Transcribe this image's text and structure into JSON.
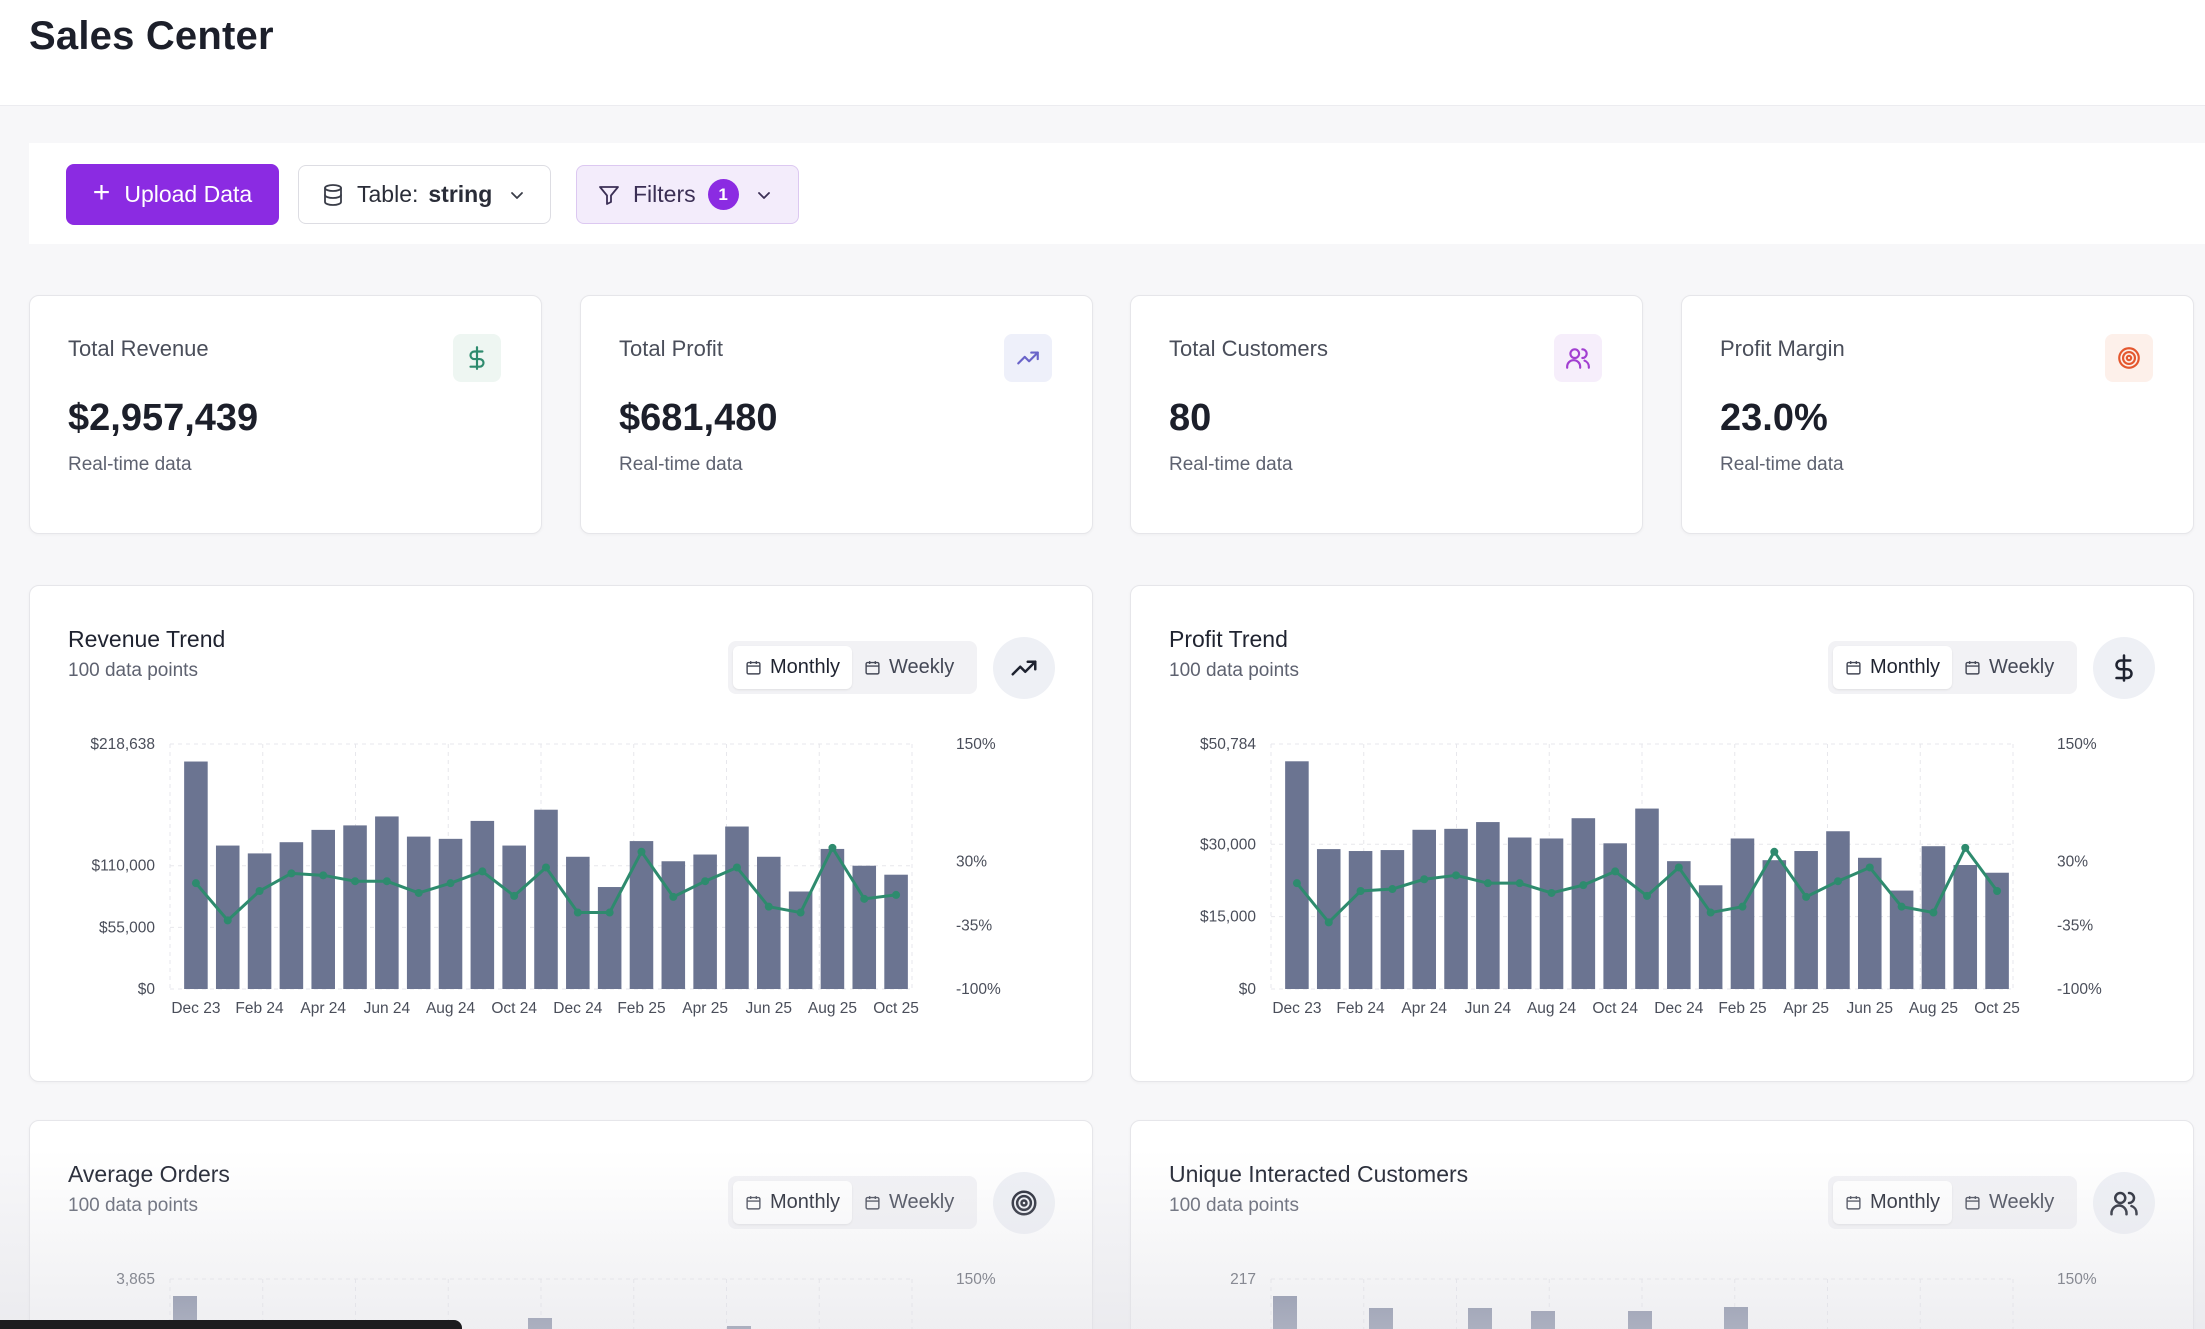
{
  "header": {
    "title": "Sales Center"
  },
  "toolbar": {
    "upload_label": "Upload Data",
    "table_label": "Table:",
    "table_value": "string",
    "filters_label": "Filters",
    "filters_count": "1"
  },
  "kpis": [
    {
      "title": "Total Revenue",
      "value": "$2,957,439",
      "sub": "Real-time data",
      "icon": "dollar-icon",
      "icon_color": "#2e8b6e",
      "icon_bg": "#eef6f2"
    },
    {
      "title": "Total Profit",
      "value": "$681,480",
      "sub": "Real-time data",
      "icon": "trending-up-icon",
      "icon_color": "#6a64c9",
      "icon_bg": "#eef0fa"
    },
    {
      "title": "Total Customers",
      "value": "80",
      "sub": "Real-time data",
      "icon": "users-icon",
      "icon_color": "#a23fd1",
      "icon_bg": "#f6eefb"
    },
    {
      "title": "Profit Margin",
      "value": "23.0%",
      "sub": "Real-time data",
      "icon": "target-icon",
      "icon_color": "#e4572e",
      "icon_bg": "#fdf0ea"
    }
  ],
  "segment": {
    "monthly": "Monthly",
    "weekly": "Weekly"
  },
  "charts": [
    {
      "title": "Revenue Trend",
      "subtitle": "100 data points",
      "icon": "trending-up-icon"
    },
    {
      "title": "Profit Trend",
      "subtitle": "100 data points",
      "icon": "dollar-icon"
    },
    {
      "title": "Average Orders",
      "subtitle": "100 data points",
      "icon": "target-icon"
    },
    {
      "title": "Unique Interacted Customers",
      "subtitle": "100 data points",
      "icon": "users-icon"
    }
  ],
  "colors": {
    "accent": "#8b2be2",
    "bar": "#6b7491",
    "line": "#2e8b6e"
  },
  "chart_data": [
    {
      "type": "bar",
      "title": "Revenue Trend",
      "x_ticks": [
        "Dec 23",
        "Feb 24",
        "Apr 24",
        "Jun 24",
        "Aug 24",
        "Oct 24",
        "Dec 24",
        "Feb 25",
        "Apr 25",
        "Jun 25",
        "Aug 25",
        "Oct 25"
      ],
      "y_ticks": [
        "$0",
        "$55,000",
        "$110,000",
        "$218,638"
      ],
      "y2_ticks": [
        "-100%",
        "-35%",
        "30%",
        "150%"
      ],
      "ylim": [
        0,
        218638
      ],
      "y2lim": [
        -100,
        150
      ],
      "series": [
        {
          "type": "bar",
          "values": [
            203000,
            128000,
            121000,
            131000,
            142000,
            146000,
            154000,
            136000,
            134000,
            150000,
            128000,
            160000,
            118000,
            91000,
            132000,
            114000,
            120000,
            145000,
            118000,
            87000,
            125000,
            110000,
            102000
          ]
        },
        {
          "type": "line",
          "values": [
            8,
            -30,
            0,
            18,
            16,
            10,
            10,
            -2,
            8,
            20,
            -5,
            24,
            -22,
            -22,
            40,
            -6,
            10,
            24,
            -16,
            -22,
            44,
            -8,
            -4
          ]
        }
      ]
    },
    {
      "type": "bar",
      "title": "Profit Trend",
      "x_ticks": [
        "Dec 23",
        "Feb 24",
        "Apr 24",
        "Jun 24",
        "Aug 24",
        "Oct 24",
        "Dec 24",
        "Feb 25",
        "Apr 25",
        "Jun 25",
        "Aug 25",
        "Oct 25"
      ],
      "y_ticks": [
        "$0",
        "$15,000",
        "$30,000",
        "$50,784"
      ],
      "y2_ticks": [
        "-100%",
        "-35%",
        "30%",
        "150%"
      ],
      "ylim": [
        0,
        50784
      ],
      "y2lim": [
        -100,
        150
      ],
      "series": [
        {
          "type": "bar",
          "values": [
            47200,
            29000,
            28600,
            28800,
            33000,
            33200,
            34600,
            31400,
            31200,
            35400,
            30200,
            37400,
            26500,
            21500,
            31200,
            26700,
            28600,
            32700,
            27200,
            20400,
            29600,
            25700,
            24100
          ]
        },
        {
          "type": "line",
          "values": [
            8,
            -32,
            0,
            2,
            12,
            16,
            8,
            8,
            -2,
            6,
            20,
            -5,
            24,
            -22,
            -16,
            40,
            -6,
            10,
            24,
            -16,
            -22,
            44,
            0
          ]
        }
      ]
    },
    {
      "type": "bar",
      "title": "Average Orders",
      "y_ticks": [
        "3,865"
      ],
      "y2_ticks": [
        "150%"
      ]
    },
    {
      "type": "bar",
      "title": "Unique Interacted Customers",
      "y_ticks": [
        "217"
      ],
      "y2_ticks": [
        "150%"
      ]
    }
  ]
}
